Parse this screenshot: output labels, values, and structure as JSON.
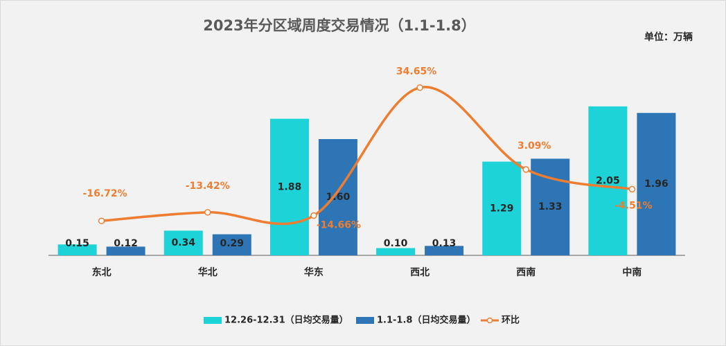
{
  "chart_data": {
    "type": "bar",
    "title": "2023年分区域周度交易情况（1.1-1.8）",
    "unit_label": "单位：万辆",
    "categories": [
      "东北",
      "华北",
      "华东",
      "西北",
      "西南",
      "中南"
    ],
    "ylim": [
      0,
      2.5
    ],
    "y2lim": [
      -30,
      40
    ],
    "series": [
      {
        "name": "12.26-12.31（日均交易量）",
        "type": "bar",
        "color": "#1dd3d8",
        "values": [
          0.15,
          0.34,
          1.88,
          0.1,
          1.29,
          2.05
        ],
        "value_labels": [
          "0.15",
          "0.34",
          "1.88",
          "0.10",
          "1.29",
          "2.05"
        ]
      },
      {
        "name": "1.1-1.8（日均交易量）",
        "type": "bar",
        "color": "#2e75b6",
        "values": [
          0.12,
          0.29,
          1.6,
          0.13,
          1.33,
          1.96
        ],
        "value_labels": [
          "0.12",
          "0.29",
          "1.60",
          "0.13",
          "1.33",
          "1.96"
        ]
      },
      {
        "name": "环比",
        "type": "line",
        "axis": "y2",
        "color": "#ed7d31",
        "values": [
          -16.72,
          -13.42,
          -14.66,
          34.65,
          3.09,
          -4.51
        ],
        "value_labels": [
          "-16.72%",
          "-13.42%",
          "-14.66%",
          "34.65%",
          "3.09%",
          "-4.51%"
        ]
      }
    ]
  }
}
